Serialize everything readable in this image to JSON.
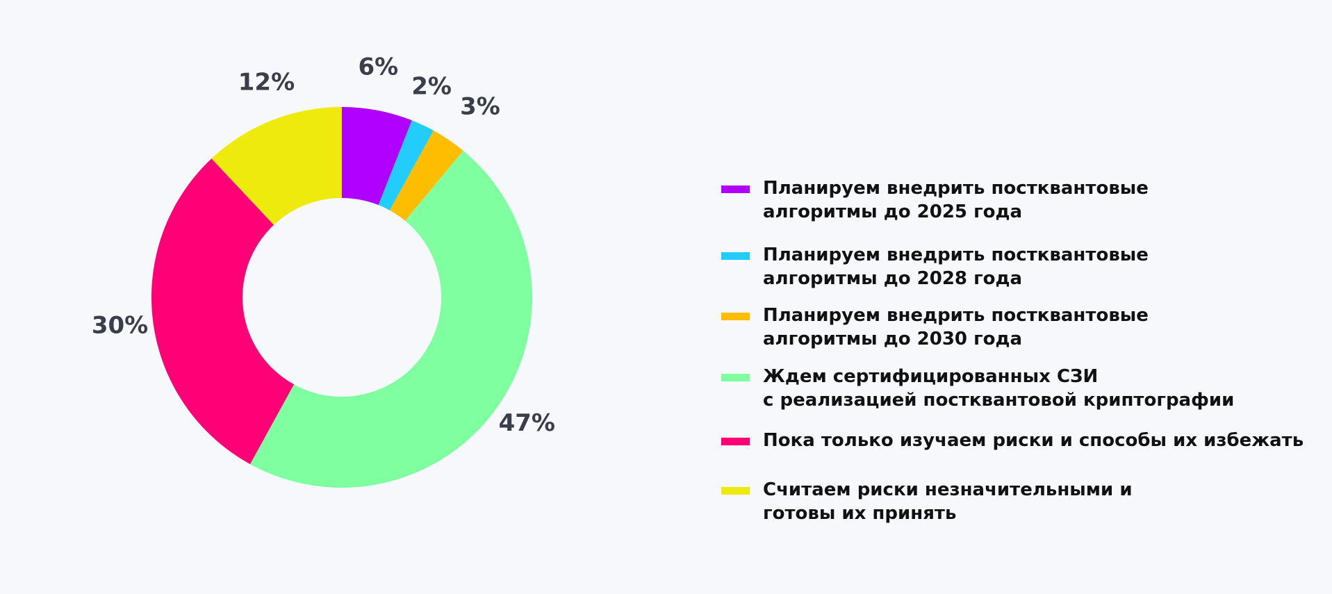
{
  "chart_data": {
    "type": "pie",
    "donut": true,
    "categories": [
      "Планируем внедрить постквантовые\nалгоритмы до 2025 года",
      "Планируем внедрить постквантовые\nалгоритмы до 2028 года",
      "Планируем внедрить постквантовые\nалгоритмы до 2030 года",
      "Ждем сертифицированных СЗИ\nс реализацией постквантовой криптографии",
      "Пока только изучаем риски и способы их избежать",
      "Считаем риски незначительными и\nготовы их принять"
    ],
    "values": [
      6,
      2,
      3,
      47,
      30,
      12
    ],
    "value_labels": [
      "6%",
      "2%",
      "3%",
      "47%",
      "30%",
      "12%"
    ],
    "colors": [
      "#b000ff",
      "#22cdfb",
      "#ffbd00",
      "#80ffa0",
      "#ff0076",
      "#eeea0e"
    ],
    "legend_position": "right"
  }
}
